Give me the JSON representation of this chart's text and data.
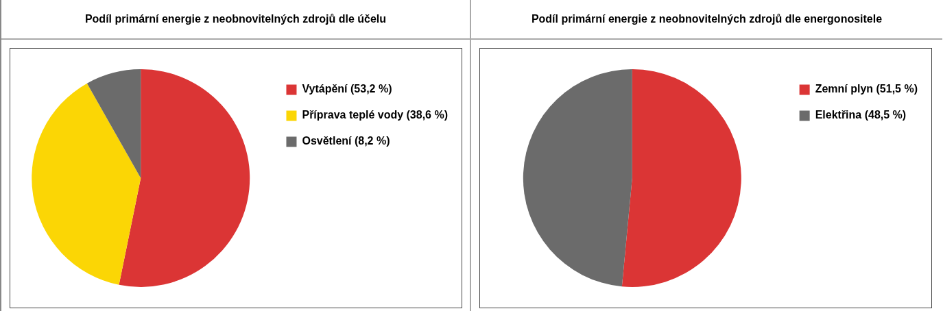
{
  "chart_data": [
    {
      "type": "pie",
      "title": "Podíl primární energie z neobnovitelných zdrojů dle účelu",
      "categories": [
        "Vytápění (53,2 %)",
        "Příprava teplé vody (38,6 %)",
        "Osvětlení (8,2 %)"
      ],
      "values": [
        53.2,
        38.6,
        8.2
      ],
      "colors": [
        "#db3535",
        "#fbd605",
        "#6b6b6b"
      ],
      "legend": "top right"
    },
    {
      "type": "pie",
      "title": "Podíl primární energie z neobnovitelných zdrojů dle energonositele",
      "categories": [
        "Zemní plyn (51,5 %)",
        "Elektřina (48,5 %)"
      ],
      "values": [
        51.5,
        48.5
      ],
      "colors": [
        "#db3535",
        "#6b6b6b"
      ],
      "legend": "top right"
    }
  ]
}
